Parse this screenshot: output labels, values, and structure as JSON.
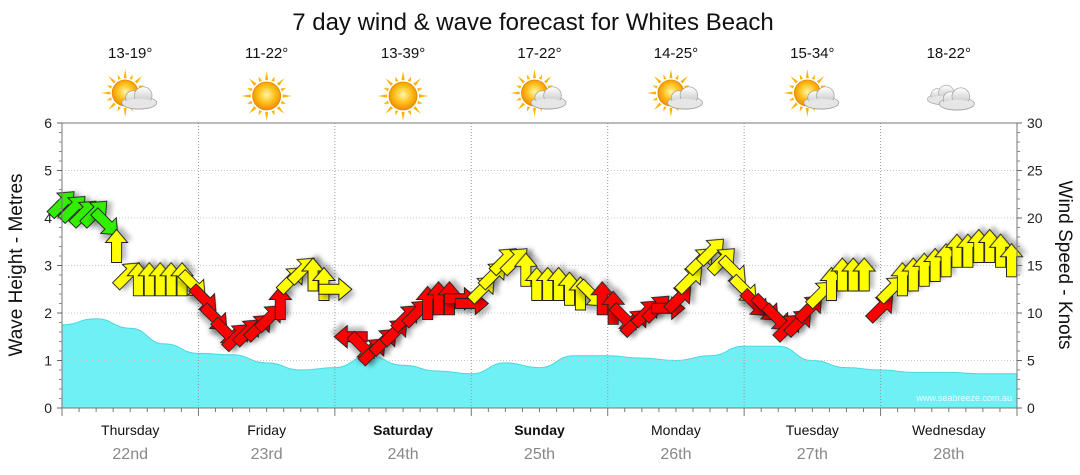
{
  "chart_data": {
    "type": "area",
    "title": "7 day wind & wave forecast for Whites Beach",
    "ylabel_left": "Wave Height - Metres",
    "ylabel_right": "Wind Speed - Knots",
    "ylim_left": [
      0,
      6
    ],
    "ylim_right": [
      0,
      30
    ],
    "left_ticks": [
      "0",
      "1",
      "2",
      "3",
      "4",
      "5",
      "6"
    ],
    "right_ticks": [
      "0",
      "5",
      "10",
      "15",
      "20",
      "25",
      "30"
    ],
    "watermark": "www.seabreeze.com.au",
    "grid": true,
    "days": [
      {
        "name": "Thursday",
        "date": "22nd",
        "temp": "13-19°",
        "weather": "partly-cloudy",
        "bold": false
      },
      {
        "name": "Friday",
        "date": "23rd",
        "temp": "11-22°",
        "weather": "sunny",
        "bold": false
      },
      {
        "name": "Saturday",
        "date": "24th",
        "temp": "13-39°",
        "weather": "sunny",
        "bold": true
      },
      {
        "name": "Sunday",
        "date": "25th",
        "temp": "17-22°",
        "weather": "partly-cloudy",
        "bold": true
      },
      {
        "name": "Monday",
        "date": "26th",
        "temp": "14-25°",
        "weather": "partly-cloudy",
        "bold": false
      },
      {
        "name": "Tuesday",
        "date": "27th",
        "temp": "15-34°",
        "weather": "partly-cloudy",
        "bold": false
      },
      {
        "name": "Wednesday",
        "date": "28th",
        "temp": "18-22°",
        "weather": "cloudy",
        "bold": false
      }
    ],
    "wave_series": {
      "name": "Wave Height",
      "units": "m",
      "x_days": [
        0,
        0.25,
        0.5,
        0.75,
        1,
        1.25,
        1.5,
        1.75,
        2,
        2.25,
        2.5,
        2.75,
        3,
        3.25,
        3.5,
        3.75,
        4,
        4.25,
        4.5,
        4.75,
        5,
        5.25,
        5.5,
        5.75,
        6,
        6.25,
        6.5,
        6.75,
        7
      ],
      "values": [
        1.75,
        1.88,
        1.68,
        1.35,
        1.15,
        1.12,
        0.95,
        0.8,
        0.85,
        1.1,
        0.9,
        0.78,
        0.72,
        0.95,
        0.85,
        1.1,
        1.1,
        1.05,
        1.0,
        1.1,
        1.3,
        1.3,
        1.0,
        0.85,
        0.8,
        0.75,
        0.75,
        0.72,
        0.72
      ]
    },
    "wind_series": {
      "name": "Wind Speed",
      "units": "knots",
      "points": [
        {
          "d": 0.0,
          "s": 21.5,
          "dir": "NE"
        },
        {
          "d": 0.08,
          "s": 21.0,
          "dir": "NE"
        },
        {
          "d": 0.16,
          "s": 20.5,
          "dir": "NE"
        },
        {
          "d": 0.24,
          "s": 20.5,
          "dir": "NE"
        },
        {
          "d": 0.32,
          "s": 19.5,
          "dir": "SE"
        },
        {
          "d": 0.4,
          "s": 17.0,
          "dir": "N"
        },
        {
          "d": 0.48,
          "s": 14.0,
          "dir": "NE"
        },
        {
          "d": 0.56,
          "s": 13.5,
          "dir": "N"
        },
        {
          "d": 0.64,
          "s": 13.5,
          "dir": "N"
        },
        {
          "d": 0.72,
          "s": 13.5,
          "dir": "N"
        },
        {
          "d": 0.8,
          "s": 13.5,
          "dir": "N"
        },
        {
          "d": 0.88,
          "s": 13.5,
          "dir": "N"
        },
        {
          "d": 0.96,
          "s": 13.0,
          "dir": "SE"
        },
        {
          "d": 1.04,
          "s": 11.5,
          "dir": "SE"
        },
        {
          "d": 1.12,
          "s": 9.5,
          "dir": "SE"
        },
        {
          "d": 1.2,
          "s": 8.0,
          "dir": "SE"
        },
        {
          "d": 1.28,
          "s": 7.5,
          "dir": "NE"
        },
        {
          "d": 1.36,
          "s": 8.0,
          "dir": "NE"
        },
        {
          "d": 1.44,
          "s": 8.5,
          "dir": "NE"
        },
        {
          "d": 1.52,
          "s": 9.5,
          "dir": "NE"
        },
        {
          "d": 1.6,
          "s": 11.0,
          "dir": "N"
        },
        {
          "d": 1.68,
          "s": 13.5,
          "dir": "NE"
        },
        {
          "d": 1.76,
          "s": 14.5,
          "dir": "NE"
        },
        {
          "d": 1.84,
          "s": 14.0,
          "dir": "N"
        },
        {
          "d": 1.92,
          "s": 13.0,
          "dir": "N"
        },
        {
          "d": 2.0,
          "s": 12.5,
          "dir": "E"
        },
        {
          "d": 2.12,
          "s": 7.5,
          "dir": "W"
        },
        {
          "d": 2.2,
          "s": 6.5,
          "dir": "SE"
        },
        {
          "d": 2.28,
          "s": 6.0,
          "dir": "NE"
        },
        {
          "d": 2.36,
          "s": 7.0,
          "dir": "NE"
        },
        {
          "d": 2.44,
          "s": 8.0,
          "dir": "NE"
        },
        {
          "d": 2.52,
          "s": 9.5,
          "dir": "NE"
        },
        {
          "d": 2.6,
          "s": 10.0,
          "dir": "NE"
        },
        {
          "d": 2.68,
          "s": 11.0,
          "dir": "N"
        },
        {
          "d": 2.76,
          "s": 11.5,
          "dir": "N"
        },
        {
          "d": 2.84,
          "s": 11.5,
          "dir": "N"
        },
        {
          "d": 2.92,
          "s": 11.5,
          "dir": "E"
        },
        {
          "d": 3.0,
          "s": 11.0,
          "dir": "E"
        },
        {
          "d": 3.08,
          "s": 12.5,
          "dir": "NE"
        },
        {
          "d": 3.16,
          "s": 14.0,
          "dir": "NE"
        },
        {
          "d": 3.24,
          "s": 15.5,
          "dir": "NE"
        },
        {
          "d": 3.32,
          "s": 15.5,
          "dir": "NE"
        },
        {
          "d": 3.4,
          "s": 14.5,
          "dir": "N"
        },
        {
          "d": 3.48,
          "s": 13.0,
          "dir": "N"
        },
        {
          "d": 3.56,
          "s": 13.0,
          "dir": "N"
        },
        {
          "d": 3.64,
          "s": 13.0,
          "dir": "N"
        },
        {
          "d": 3.72,
          "s": 12.5,
          "dir": "N"
        },
        {
          "d": 3.8,
          "s": 12.0,
          "dir": "N"
        },
        {
          "d": 3.88,
          "s": 12.0,
          "dir": "SE"
        },
        {
          "d": 3.96,
          "s": 11.5,
          "dir": "N"
        },
        {
          "d": 4.04,
          "s": 10.5,
          "dir": "N"
        },
        {
          "d": 4.12,
          "s": 9.5,
          "dir": "SE"
        },
        {
          "d": 4.2,
          "s": 9.0,
          "dir": "NE"
        },
        {
          "d": 4.28,
          "s": 10.0,
          "dir": "NE"
        },
        {
          "d": 4.36,
          "s": 10.5,
          "dir": "NE"
        },
        {
          "d": 4.44,
          "s": 10.5,
          "dir": "E"
        },
        {
          "d": 4.52,
          "s": 11.5,
          "dir": "NE"
        },
        {
          "d": 4.6,
          "s": 13.5,
          "dir": "NE"
        },
        {
          "d": 4.68,
          "s": 15.5,
          "dir": "NE"
        },
        {
          "d": 4.76,
          "s": 16.5,
          "dir": "NE"
        },
        {
          "d": 4.84,
          "s": 15.5,
          "dir": "NE"
        },
        {
          "d": 4.92,
          "s": 14.5,
          "dir": "SE"
        },
        {
          "d": 5.0,
          "s": 12.5,
          "dir": "SE"
        },
        {
          "d": 5.08,
          "s": 11.0,
          "dir": "SE"
        },
        {
          "d": 5.16,
          "s": 10.5,
          "dir": "SE"
        },
        {
          "d": 5.24,
          "s": 9.5,
          "dir": "SE"
        },
        {
          "d": 5.32,
          "s": 8.5,
          "dir": "NE"
        },
        {
          "d": 5.4,
          "s": 9.0,
          "dir": "NE"
        },
        {
          "d": 5.48,
          "s": 10.5,
          "dir": "NE"
        },
        {
          "d": 5.56,
          "s": 12.0,
          "dir": "NE"
        },
        {
          "d": 5.64,
          "s": 13.0,
          "dir": "N"
        },
        {
          "d": 5.72,
          "s": 14.0,
          "dir": "N"
        },
        {
          "d": 5.8,
          "s": 14.0,
          "dir": "N"
        },
        {
          "d": 5.88,
          "s": 14.0,
          "dir": "N"
        },
        {
          "d": 6.0,
          "s": 10.5,
          "dir": "NE"
        },
        {
          "d": 6.08,
          "s": 12.5,
          "dir": "NE"
        },
        {
          "d": 6.16,
          "s": 13.5,
          "dir": "N"
        },
        {
          "d": 6.24,
          "s": 14.0,
          "dir": "N"
        },
        {
          "d": 6.32,
          "s": 14.5,
          "dir": "N"
        },
        {
          "d": 6.4,
          "s": 15.0,
          "dir": "N"
        },
        {
          "d": 6.48,
          "s": 15.5,
          "dir": "N"
        },
        {
          "d": 6.56,
          "s": 16.5,
          "dir": "N"
        },
        {
          "d": 6.64,
          "s": 16.5,
          "dir": "N"
        },
        {
          "d": 6.72,
          "s": 17.0,
          "dir": "N"
        },
        {
          "d": 6.8,
          "s": 17.0,
          "dir": "N"
        },
        {
          "d": 6.88,
          "s": 16.5,
          "dir": "N"
        },
        {
          "d": 6.96,
          "s": 15.5,
          "dir": "N"
        }
      ]
    },
    "colors": {
      "wave_fill": "#6ff0f5",
      "wave_line": "#49d7df",
      "wind_low": "#ff0000",
      "wind_mid": "#ffff00",
      "wind_high": "#33ee00",
      "grid": "#c8c8c8",
      "plot_border": "#777777"
    }
  }
}
